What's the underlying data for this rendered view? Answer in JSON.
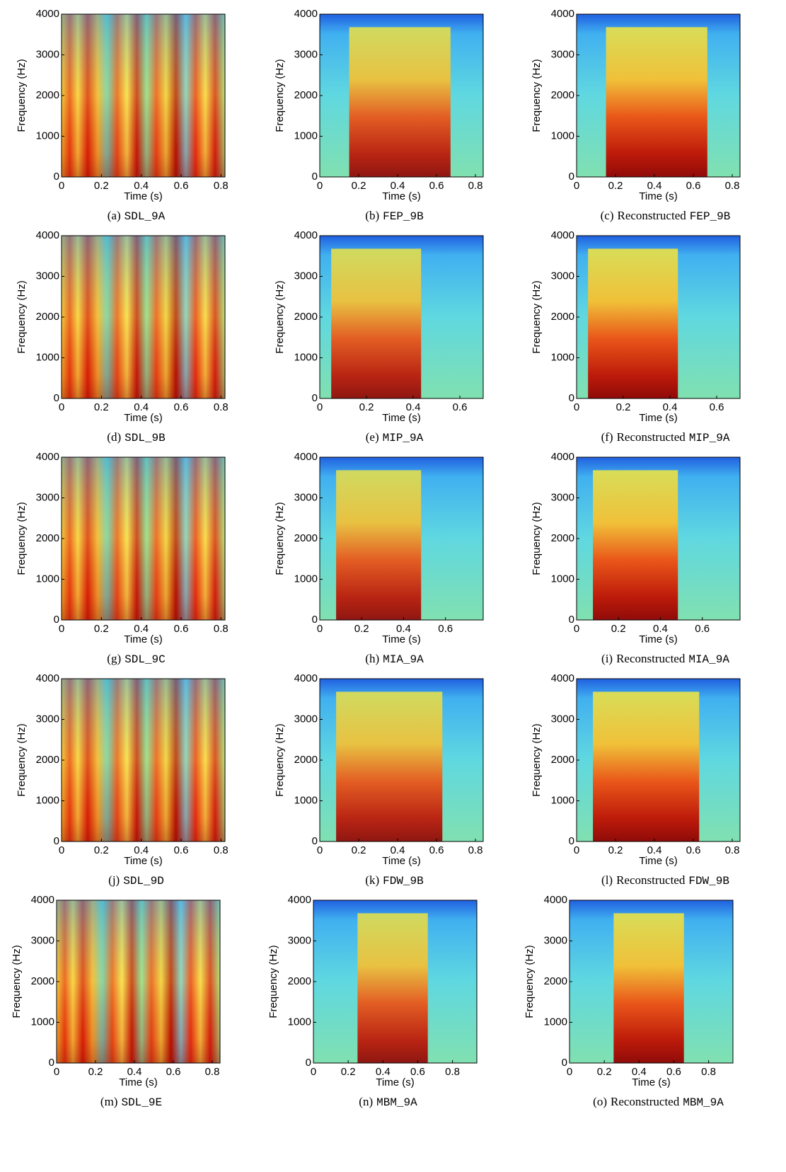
{
  "chart_data": [
    {
      "type": "spectrogram",
      "caption_label": "(a)",
      "caption_code": "SDL_9A",
      "xlabel": "Time (s)",
      "ylabel": "Frequency (Hz)",
      "xlim": [
        0,
        0.82
      ],
      "ylim": [
        0,
        4000
      ],
      "xticks": [
        0,
        0.2,
        0.4,
        0.6,
        0.8
      ],
      "yticks": [
        0,
        1000,
        2000,
        3000,
        4000
      ]
    },
    {
      "type": "spectrogram",
      "caption_label": "(b)",
      "caption_code": "FEP_9B",
      "xlabel": "Time (s)",
      "ylabel": "Frequency (Hz)",
      "xlim": [
        0,
        0.84
      ],
      "ylim": [
        0,
        4000
      ],
      "xticks": [
        0,
        0.2,
        0.4,
        0.6,
        0.8
      ],
      "yticks": [
        0,
        1000,
        2000,
        3000,
        4000
      ]
    },
    {
      "type": "spectrogram",
      "caption_label": "(c)",
      "caption_text": "Reconstructed",
      "caption_code": "FEP_9B",
      "xlabel": "Time (s)",
      "ylabel": "Frequency (Hz)",
      "xlim": [
        0,
        0.84
      ],
      "ylim": [
        0,
        4000
      ],
      "xticks": [
        0,
        0.2,
        0.4,
        0.6,
        0.8
      ],
      "yticks": [
        0,
        1000,
        2000,
        3000,
        4000
      ]
    },
    {
      "type": "spectrogram",
      "caption_label": "(d)",
      "caption_code": "SDL_9B",
      "xlabel": "Time (s)",
      "ylabel": "Frequency (Hz)",
      "xlim": [
        0,
        0.82
      ],
      "ylim": [
        0,
        4000
      ],
      "xticks": [
        0,
        0.2,
        0.4,
        0.6,
        0.8
      ],
      "yticks": [
        0,
        1000,
        2000,
        3000,
        4000
      ]
    },
    {
      "type": "spectrogram",
      "caption_label": "(e)",
      "caption_code": "MIP_9A",
      "xlabel": "Time (s)",
      "ylabel": "Frequency (Hz)",
      "xlim": [
        0,
        0.7
      ],
      "ylim": [
        0,
        4000
      ],
      "xticks": [
        0,
        0.2,
        0.4,
        0.6
      ],
      "yticks": [
        0,
        1000,
        2000,
        3000,
        4000
      ]
    },
    {
      "type": "spectrogram",
      "caption_label": "(f)",
      "caption_text": "Reconstructed",
      "caption_code": "MIP_9A",
      "xlabel": "Time (s)",
      "ylabel": "Frequency (Hz)",
      "xlim": [
        0,
        0.7
      ],
      "ylim": [
        0,
        4000
      ],
      "xticks": [
        0,
        0.2,
        0.4,
        0.6
      ],
      "yticks": [
        0,
        1000,
        2000,
        3000,
        4000
      ]
    },
    {
      "type": "spectrogram",
      "caption_label": "(g)",
      "caption_code": "SDL_9C",
      "xlabel": "Time (s)",
      "ylabel": "Frequency (Hz)",
      "xlim": [
        0,
        0.82
      ],
      "ylim": [
        0,
        4000
      ],
      "xticks": [
        0,
        0.2,
        0.4,
        0.6,
        0.8
      ],
      "yticks": [
        0,
        1000,
        2000,
        3000,
        4000
      ]
    },
    {
      "type": "spectrogram",
      "caption_label": "(h)",
      "caption_code": "MIA_9A",
      "xlabel": "Time (s)",
      "ylabel": "Frequency (Hz)",
      "xlim": [
        0,
        0.78
      ],
      "ylim": [
        0,
        4000
      ],
      "xticks": [
        0,
        0.2,
        0.4,
        0.6
      ],
      "yticks": [
        0,
        1000,
        2000,
        3000,
        4000
      ]
    },
    {
      "type": "spectrogram",
      "caption_label": "(i)",
      "caption_text": "Reconstructed",
      "caption_code": "MIA_9A",
      "xlabel": "Time (s)",
      "ylabel": "Frequency (Hz)",
      "xlim": [
        0,
        0.78
      ],
      "ylim": [
        0,
        4000
      ],
      "xticks": [
        0,
        0.2,
        0.4,
        0.6
      ],
      "yticks": [
        0,
        1000,
        2000,
        3000,
        4000
      ]
    },
    {
      "type": "spectrogram",
      "caption_label": "(j)",
      "caption_code": "SDL_9D",
      "xlabel": "Time (s)",
      "ylabel": "Frequency (Hz)",
      "xlim": [
        0,
        0.82
      ],
      "ylim": [
        0,
        4000
      ],
      "xticks": [
        0,
        0.2,
        0.4,
        0.6,
        0.8
      ],
      "yticks": [
        0,
        1000,
        2000,
        3000,
        4000
      ]
    },
    {
      "type": "spectrogram",
      "caption_label": "(k)",
      "caption_code": "FDW_9B",
      "xlabel": "Time (s)",
      "ylabel": "Frequency (Hz)",
      "xlim": [
        0,
        0.84
      ],
      "ylim": [
        0,
        4000
      ],
      "xticks": [
        0,
        0.2,
        0.4,
        0.6,
        0.8
      ],
      "yticks": [
        0,
        1000,
        2000,
        3000,
        4000
      ]
    },
    {
      "type": "spectrogram",
      "caption_label": "(l)",
      "caption_text": "Reconstructed",
      "caption_code": "FDW_9B",
      "xlabel": "Time (s)",
      "ylabel": "Frequency (Hz)",
      "xlim": [
        0,
        0.84
      ],
      "ylim": [
        0,
        4000
      ],
      "xticks": [
        0,
        0.2,
        0.4,
        0.6,
        0.8
      ],
      "yticks": [
        0,
        1000,
        2000,
        3000,
        4000
      ]
    },
    {
      "type": "spectrogram",
      "caption_label": "(m)",
      "caption_code": "SDL_9E",
      "xlabel": "Time (s)",
      "ylabel": "Frequency (Hz)",
      "xlim": [
        0,
        0.84
      ],
      "ylim": [
        0,
        4000
      ],
      "xticks": [
        0,
        0.2,
        0.4,
        0.6,
        0.8
      ],
      "yticks": [
        0,
        1000,
        2000,
        3000,
        4000
      ]
    },
    {
      "type": "spectrogram",
      "caption_label": "(n)",
      "caption_code": "MBM_9A",
      "xlabel": "Time (s)",
      "ylabel": "Frequency (Hz)",
      "xlim": [
        0,
        0.94
      ],
      "ylim": [
        0,
        4000
      ],
      "xticks": [
        0,
        0.2,
        0.4,
        0.6,
        0.8
      ],
      "yticks": [
        0,
        1000,
        2000,
        3000,
        4000
      ]
    },
    {
      "type": "spectrogram",
      "caption_label": "(o)",
      "caption_text": "Reconstructed",
      "caption_code": "MBM_9A",
      "xlabel": "Time (s)",
      "ylabel": "Frequency (Hz)",
      "xlim": [
        0,
        0.94
      ],
      "ylim": [
        0,
        4000
      ],
      "xticks": [
        0,
        0.2,
        0.4,
        0.6,
        0.8
      ],
      "yticks": [
        0,
        1000,
        2000,
        3000,
        4000
      ]
    }
  ]
}
